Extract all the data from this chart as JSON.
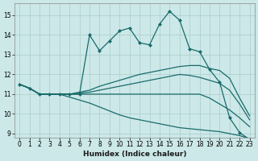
{
  "xlabel": "Humidex (Indice chaleur)",
  "bg_color": "#cce8e8",
  "grid_color": "#aacccc",
  "line_color": "#1a6b6b",
  "xlim": [
    -0.5,
    23.5
  ],
  "ylim": [
    8.8,
    15.6
  ],
  "yticks": [
    9,
    10,
    11,
    12,
    13,
    14,
    15
  ],
  "xticks": [
    0,
    1,
    2,
    3,
    4,
    5,
    6,
    7,
    8,
    9,
    10,
    11,
    12,
    13,
    14,
    15,
    16,
    17,
    18,
    19,
    20,
    21,
    22,
    23
  ],
  "lines": [
    {
      "x": [
        0,
        1,
        2,
        3,
        4,
        5,
        6,
        7,
        8,
        9,
        10,
        11,
        12,
        13,
        14,
        15,
        16,
        17,
        18,
        19,
        20,
        21,
        22,
        23
      ],
      "y": [
        11.5,
        11.3,
        11.0,
        11.0,
        11.0,
        11.0,
        11.0,
        14.0,
        13.2,
        13.7,
        14.2,
        14.35,
        13.6,
        13.5,
        14.55,
        15.2,
        14.75,
        13.3,
        13.15,
        12.25,
        11.6,
        9.8,
        9.05,
        8.7
      ]
    },
    {
      "x": [
        0,
        1,
        2,
        3,
        4,
        5,
        6,
        7,
        8,
        9,
        10,
        11,
        12,
        13,
        14,
        15,
        16,
        17,
        18,
        19,
        20,
        21,
        22,
        23
      ],
      "y": [
        11.5,
        11.3,
        11.0,
        11.0,
        11.0,
        11.0,
        11.1,
        11.2,
        11.4,
        11.55,
        11.7,
        11.85,
        12.0,
        12.1,
        12.2,
        12.3,
        12.4,
        12.45,
        12.45,
        12.3,
        12.2,
        11.8,
        10.8,
        9.9
      ]
    },
    {
      "x": [
        0,
        1,
        2,
        3,
        4,
        5,
        6,
        7,
        8,
        9,
        10,
        11,
        12,
        13,
        14,
        15,
        16,
        17,
        18,
        19,
        20,
        21,
        22,
        23
      ],
      "y": [
        11.5,
        11.3,
        11.0,
        11.0,
        11.0,
        11.0,
        11.05,
        11.1,
        11.2,
        11.3,
        11.4,
        11.5,
        11.6,
        11.7,
        11.8,
        11.9,
        12.0,
        11.95,
        11.85,
        11.7,
        11.55,
        11.2,
        10.5,
        9.7
      ]
    },
    {
      "x": [
        0,
        1,
        2,
        3,
        4,
        5,
        6,
        7,
        8,
        9,
        10,
        11,
        12,
        13,
        14,
        15,
        16,
        17,
        18,
        19,
        20,
        21,
        22,
        23
      ],
      "y": [
        11.5,
        11.3,
        11.0,
        11.0,
        11.0,
        11.0,
        11.0,
        11.0,
        11.0,
        11.0,
        11.0,
        11.0,
        11.0,
        11.0,
        11.0,
        11.0,
        11.0,
        11.0,
        11.0,
        10.8,
        10.5,
        10.2,
        9.8,
        9.35
      ]
    },
    {
      "x": [
        0,
        1,
        2,
        3,
        4,
        5,
        6,
        7,
        8,
        9,
        10,
        11,
        12,
        13,
        14,
        15,
        16,
        17,
        18,
        19,
        20,
        21,
        22,
        23
      ],
      "y": [
        11.5,
        11.3,
        11.0,
        11.0,
        11.0,
        10.85,
        10.7,
        10.55,
        10.35,
        10.15,
        9.95,
        9.8,
        9.7,
        9.6,
        9.5,
        9.4,
        9.3,
        9.25,
        9.2,
        9.15,
        9.1,
        9.0,
        8.9,
        8.75
      ]
    }
  ]
}
